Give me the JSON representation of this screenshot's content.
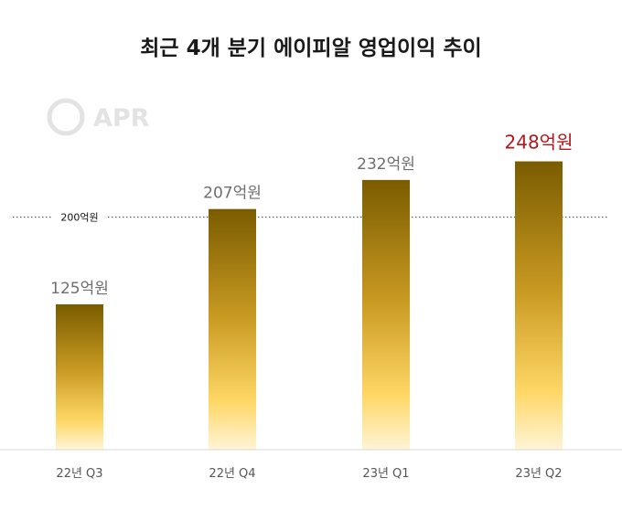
{
  "colors": {
    "bar_top": "#7a5c00",
    "bar_mid": "#c99a22",
    "bar_bottom": "#fff4d6",
    "highlight_label": "#b3171c",
    "label": "#6e6e6e",
    "ref_line": "#444444",
    "logo": "#e3e3e3"
  },
  "logo": {
    "text": "APR",
    "icon": "ring-logo-icon"
  },
  "chart_data": {
    "type": "bar",
    "title": "최근 4개 분기 에이피알 영업이익 추이",
    "categories": [
      "22년 Q3",
      "22년 Q4",
      "23년 Q1",
      "23년 Q2"
    ],
    "values": [
      125,
      207,
      232,
      248
    ],
    "value_labels": [
      "125억원",
      "207억원",
      "232억원",
      "248억원"
    ],
    "highlight_index": 3,
    "ylim": [
      0,
      250
    ],
    "reference_line": {
      "value": 200,
      "label": "200억원"
    },
    "xlabel": "",
    "ylabel": "",
    "grid": false,
    "legend": "none"
  }
}
